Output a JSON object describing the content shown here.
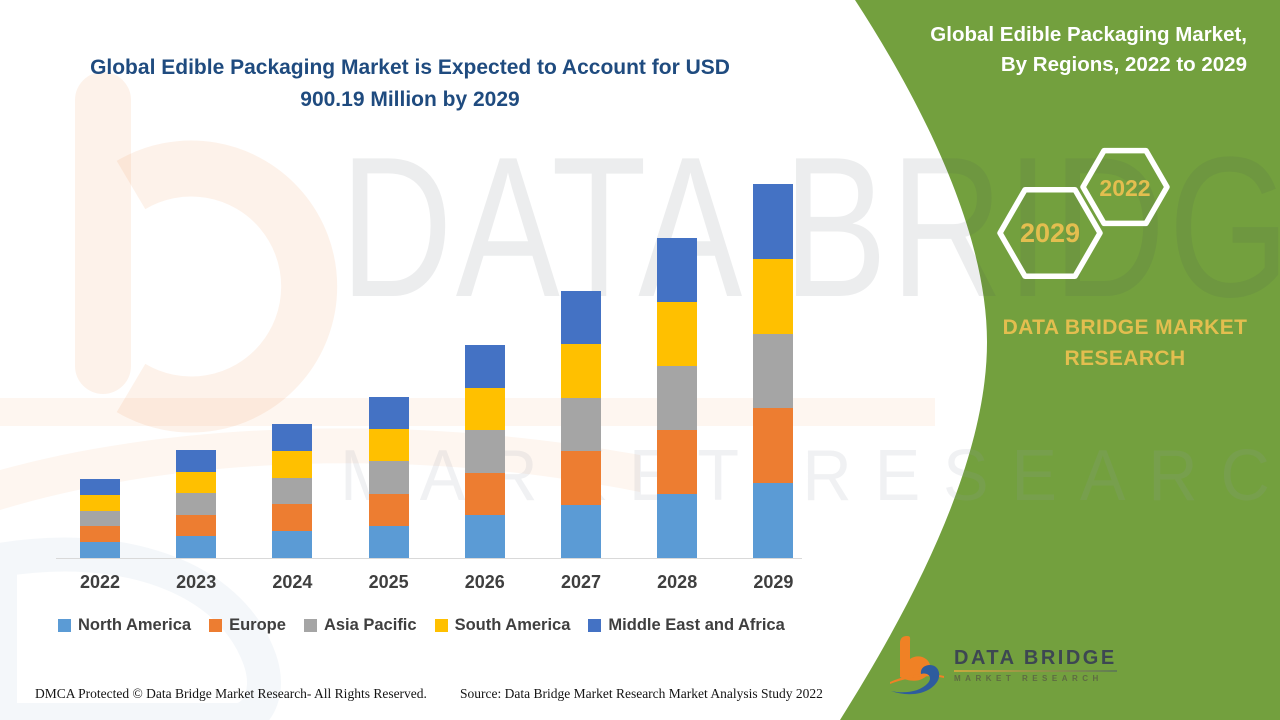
{
  "title": {
    "line1": "Global Edible Packaging Market is Expected to Account for USD",
    "line2": "900.19 Million by 2029"
  },
  "side_panel": {
    "heading_line1": "Global Edible Packaging Market,",
    "heading_line2": "By Regions, 2022 to 2029",
    "hexagon_left_label": "2029",
    "hexagon_right_label": "2022",
    "brand_line1": "DATA BRIDGE MARKET",
    "brand_line2": "RESEARCH"
  },
  "watermark": {
    "line1": "DATA BRIDGE",
    "line2": "MARKET RESEARCH"
  },
  "footer": {
    "left": "DMCA Protected © Data Bridge Market Research- All Rights Reserved.",
    "right": "Source: Data Bridge Market Research Market Analysis Study 2022"
  },
  "logo": {
    "title": "DATA BRIDGE",
    "subtitle": "MARKET RESEARCH"
  },
  "colors": {
    "panel_green": "#73A03E",
    "title_navy": "#1F4B7F",
    "accent_gold": "#E3BE4F",
    "axis_line": "#D9D9D9",
    "label_gray": "#3F3F3F",
    "logo_orange": "#F08125",
    "logo_blue": "#2E5C9E"
  },
  "chart_data": {
    "type": "bar",
    "stacked": true,
    "title": "Global Edible Packaging Market is Expected to Account for USD 900.19 Million by 2029",
    "unit": "USD Million",
    "categories": [
      "2022",
      "2023",
      "2024",
      "2025",
      "2026",
      "2027",
      "2028",
      "2029"
    ],
    "series": [
      {
        "name": "North America",
        "color": "#5B9BD5",
        "values": [
          38.0,
          52.0,
          64.5,
          77.5,
          102.5,
          128.5,
          154.0,
          180.0
        ]
      },
      {
        "name": "Europe",
        "color": "#ED7D31",
        "values": [
          38.0,
          52.0,
          64.5,
          77.5,
          102.5,
          128.5,
          154.0,
          180.0
        ]
      },
      {
        "name": "Asia Pacific",
        "color": "#A5A5A5",
        "values": [
          38.0,
          52.0,
          64.5,
          77.5,
          102.5,
          128.5,
          154.0,
          180.0
        ]
      },
      {
        "name": "South America",
        "color": "#FFC000",
        "values": [
          38.0,
          52.0,
          64.5,
          77.5,
          102.5,
          128.5,
          154.0,
          180.0
        ]
      },
      {
        "name": "Middle East and Africa",
        "color": "#4472C4",
        "values": [
          38.0,
          52.0,
          64.5,
          77.5,
          102.5,
          128.5,
          154.0,
          180.19
        ]
      }
    ],
    "totals": [
      190.0,
      260.0,
      322.5,
      387.5,
      512.5,
      642.5,
      770.0,
      900.19
    ],
    "xlabel": "",
    "ylabel": "",
    "ylim": [
      0,
      920
    ],
    "grid": false,
    "legend_position": "bottom"
  }
}
